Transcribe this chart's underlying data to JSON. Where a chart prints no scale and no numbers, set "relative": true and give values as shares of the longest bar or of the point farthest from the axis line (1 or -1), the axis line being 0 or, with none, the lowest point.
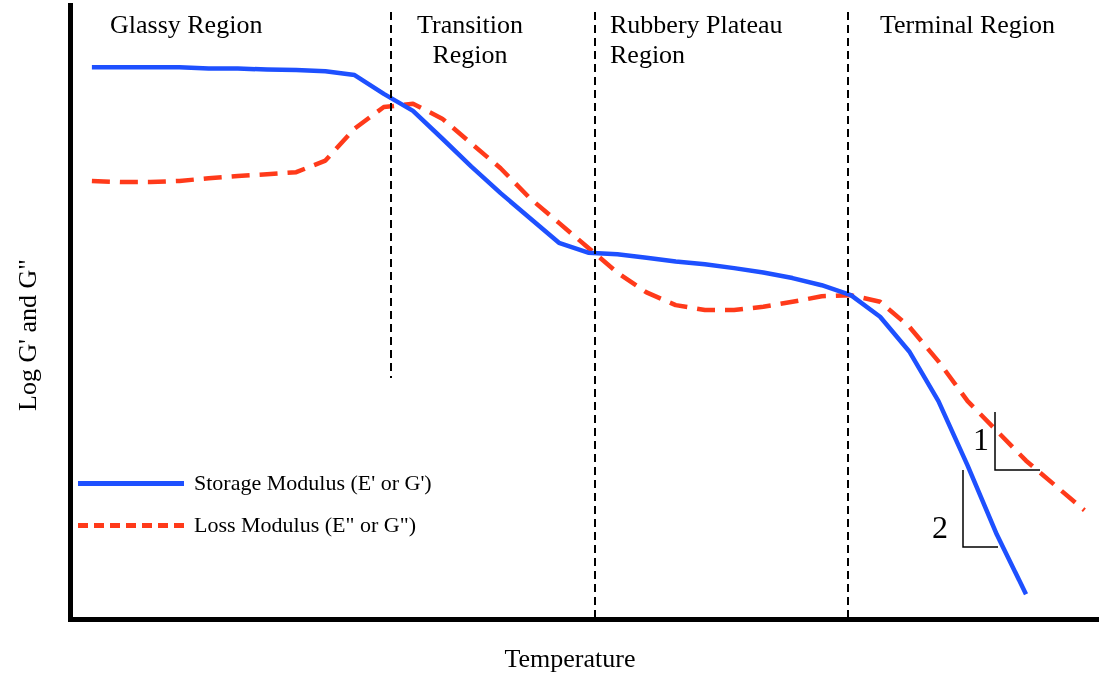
{
  "chart_data": {
    "type": "line",
    "relative": true,
    "tick_labels": false,
    "xlabel": "Temperature",
    "ylabel": "Log G' and G\"",
    "legend": "bottom left",
    "annotations": [
      "Glassy Region",
      "Transition Region",
      "Rubbery Plateau Region",
      "Terminal Region",
      "1",
      "2"
    ],
    "categories": [
      null,
      null,
      null,
      null,
      null,
      null,
      null,
      null,
      null,
      null,
      null,
      null,
      null,
      null,
      null,
      null,
      null,
      null,
      null,
      null,
      null,
      null,
      null,
      null,
      null,
      null,
      null,
      null,
      null,
      null,
      null,
      null,
      null,
      null,
      null
    ],
    "series": [
      {
        "name": "Storage Modulus (E' or G')",
        "color": "#1e50ff",
        "line_style": "solid",
        "values": [
          1,
          1,
          1,
          1,
          0.998,
          0.998,
          0.996,
          0.995,
          0.993,
          0.986,
          0.952,
          0.921,
          0.871,
          0.82,
          0.772,
          0.727,
          0.682,
          0.664,
          0.661,
          0.655,
          0.648,
          0.643,
          0.636,
          0.628,
          0.618,
          0.605,
          0.587,
          0.548,
          0.485,
          0.395,
          0.278,
          0.153,
          0.045,
          null,
          null
        ]
      },
      {
        "name": "Loss Modulus (E\" or G\")",
        "color": "#ff3a1a",
        "line_style": "dashed",
        "values": [
          0.794,
          0.792,
          0.792,
          0.794,
          0.799,
          0.803,
          0.806,
          0.81,
          0.831,
          0.889,
          0.928,
          0.934,
          0.907,
          0.862,
          0.817,
          0.763,
          0.718,
          0.673,
          0.628,
          0.592,
          0.569,
          0.56,
          0.56,
          0.566,
          0.575,
          0.585,
          0.587,
          0.575,
          0.53,
          0.467,
          0.395,
          0.341,
          0.287,
          0.242,
          0.197
        ]
      }
    ]
  }
}
